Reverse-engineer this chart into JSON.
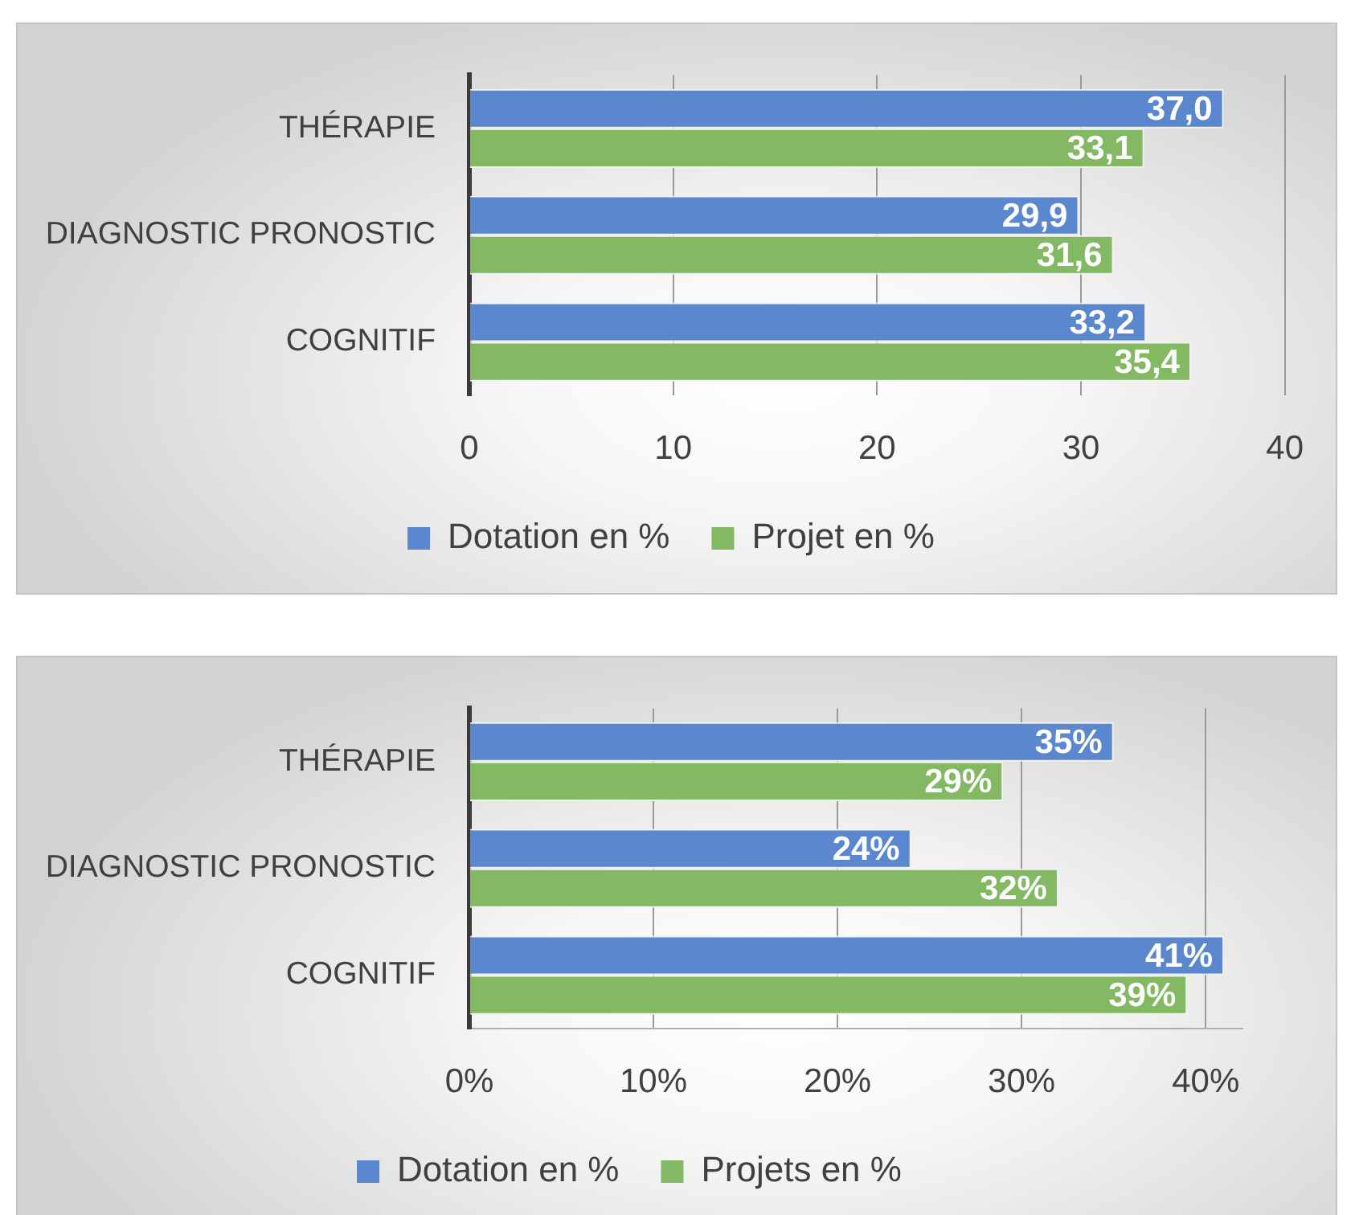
{
  "chart_data": [
    {
      "type": "bar",
      "orientation": "horizontal",
      "categories": [
        "THÉRAPIE",
        "DIAGNOSTIC PRONOSTIC",
        "COGNITIF"
      ],
      "series": [
        {
          "name": "Dotation en %",
          "color": "#5b87cf",
          "values": [
            37.0,
            29.9,
            33.2
          ],
          "value_labels": [
            "37,0",
            "29,9",
            "33,2"
          ]
        },
        {
          "name": "Projet en %",
          "color": "#84b964",
          "values": [
            33.1,
            31.6,
            35.4
          ],
          "value_labels": [
            "33,1",
            "31,6",
            "35,4"
          ]
        }
      ],
      "xlim": [
        0,
        40
      ],
      "xticks": [
        0,
        10,
        20,
        30,
        40
      ],
      "grid": "x",
      "legend": "bottom"
    },
    {
      "type": "bar",
      "orientation": "horizontal",
      "categories": [
        "THÉRAPIE",
        "DIAGNOSTIC PRONOSTIC",
        "COGNITIF"
      ],
      "series": [
        {
          "name": "Dotation en %",
          "color": "#5b87cf",
          "values": [
            35,
            24,
            41
          ],
          "value_labels": [
            "35%",
            "24%",
            "41%"
          ]
        },
        {
          "name": "Projets en %",
          "color": "#84b964",
          "values": [
            29,
            32,
            39
          ],
          "value_labels": [
            "29%",
            "32%",
            "39%"
          ]
        }
      ],
      "xlim": [
        0,
        42
      ],
      "xticks": [
        {
          "value": 0,
          "label": "0%"
        },
        {
          "value": 10,
          "label": "10%"
        },
        {
          "value": 20,
          "label": "20%"
        },
        {
          "value": 30,
          "label": "30%"
        },
        {
          "value": 40,
          "label": "40%"
        }
      ],
      "grid": "x",
      "legend": "bottom"
    }
  ]
}
